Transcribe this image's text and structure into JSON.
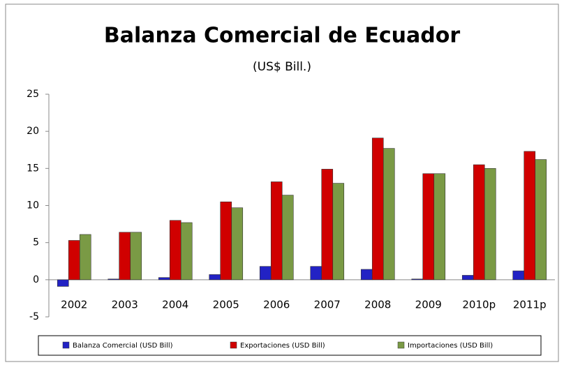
{
  "chart_data": {
    "type": "bar",
    "title": "Balanza Comercial de Ecuador",
    "subtitle": "(US$ Bill.)",
    "categories": [
      "2002",
      "2003",
      "2004",
      "2005",
      "2006",
      "2007",
      "2008",
      "2009",
      "2010p",
      "2011p"
    ],
    "series": [
      {
        "name": "Balanza Comercial (USD Bill)",
        "color": "#2222c4",
        "values": [
          -0.9,
          0.1,
          0.3,
          0.7,
          1.8,
          1.8,
          1.4,
          0.1,
          0.6,
          1.2
        ]
      },
      {
        "name": "Exportaciones (USD Bill)",
        "color": "#d00000",
        "values": [
          5.3,
          6.4,
          8.0,
          10.5,
          13.2,
          14.9,
          19.1,
          14.3,
          15.5,
          17.3
        ]
      },
      {
        "name": "Importaciones (USD Bill)",
        "color": "#7a9a45",
        "values": [
          6.1,
          6.4,
          7.7,
          9.7,
          11.4,
          13.0,
          17.7,
          14.3,
          15.0,
          16.2
        ]
      }
    ],
    "ylim": [
      -5,
      25
    ],
    "yticks": [
      -5,
      0,
      5,
      10,
      15,
      20,
      25
    ],
    "grid": false,
    "legend": "bottom"
  }
}
